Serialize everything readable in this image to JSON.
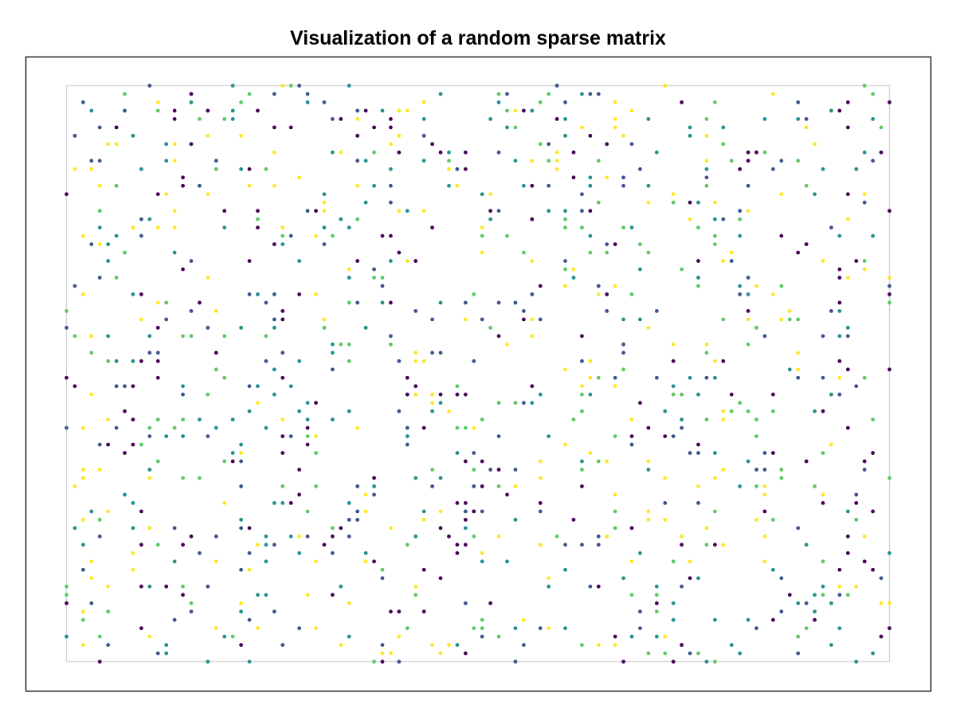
{
  "chart_data": {
    "type": "scatter",
    "title": "Visualization of a random sparse matrix",
    "xlabel": "",
    "ylabel": "",
    "grid": false,
    "legend": "none",
    "colormap": "viridis",
    "colors": [
      "#440154",
      "#3b528b",
      "#21908d",
      "#5dc863",
      "#fde725"
    ],
    "frame_color": "#000000",
    "axis_rect_color": "#d3d3d6",
    "xlim": [
      1,
      100
    ],
    "ylim": [
      1,
      70
    ],
    "y_reversed": true,
    "value_range": [
      0,
      1
    ],
    "nonzeros": 1000,
    "seed": 20240607
  }
}
